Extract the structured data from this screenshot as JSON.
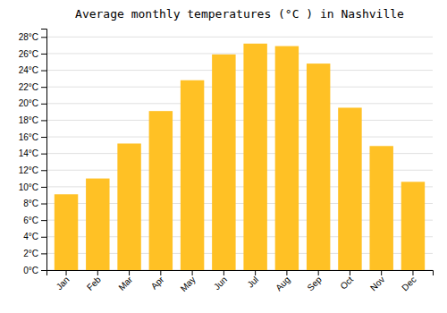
{
  "chart_data": {
    "type": "bar",
    "title": "Average monthly temperatures (°C ) in Nashville",
    "categories": [
      "Jan",
      "Feb",
      "Mar",
      "Apr",
      "May",
      "Jun",
      "Jul",
      "Aug",
      "Sep",
      "Oct",
      "Nov",
      "Dec"
    ],
    "values": [
      9.1,
      11.0,
      15.2,
      19.1,
      22.8,
      25.9,
      27.2,
      26.9,
      24.8,
      19.5,
      14.9,
      10.6
    ],
    "color": "#FFC125",
    "ylim": [
      0,
      29
    ],
    "yticks": [
      {
        "value": 0,
        "label": "0°C"
      },
      {
        "value": 2,
        "label": "2°C"
      },
      {
        "value": 4,
        "label": "4°C"
      },
      {
        "value": 6,
        "label": "6°C"
      },
      {
        "value": 8,
        "label": "8°C"
      },
      {
        "value": 10,
        "label": "10°C"
      },
      {
        "value": 12,
        "label": "12°C"
      },
      {
        "value": 14,
        "label": "14°C"
      },
      {
        "value": 16,
        "label": "16°C"
      },
      {
        "value": 18,
        "label": "18°C"
      },
      {
        "value": 20,
        "label": "20°C"
      },
      {
        "value": 22,
        "label": "22°C"
      },
      {
        "value": 24,
        "label": "24°C"
      },
      {
        "value": 26,
        "label": "26°C"
      },
      {
        "value": 28,
        "label": "28°C"
      }
    ],
    "grid": true
  }
}
